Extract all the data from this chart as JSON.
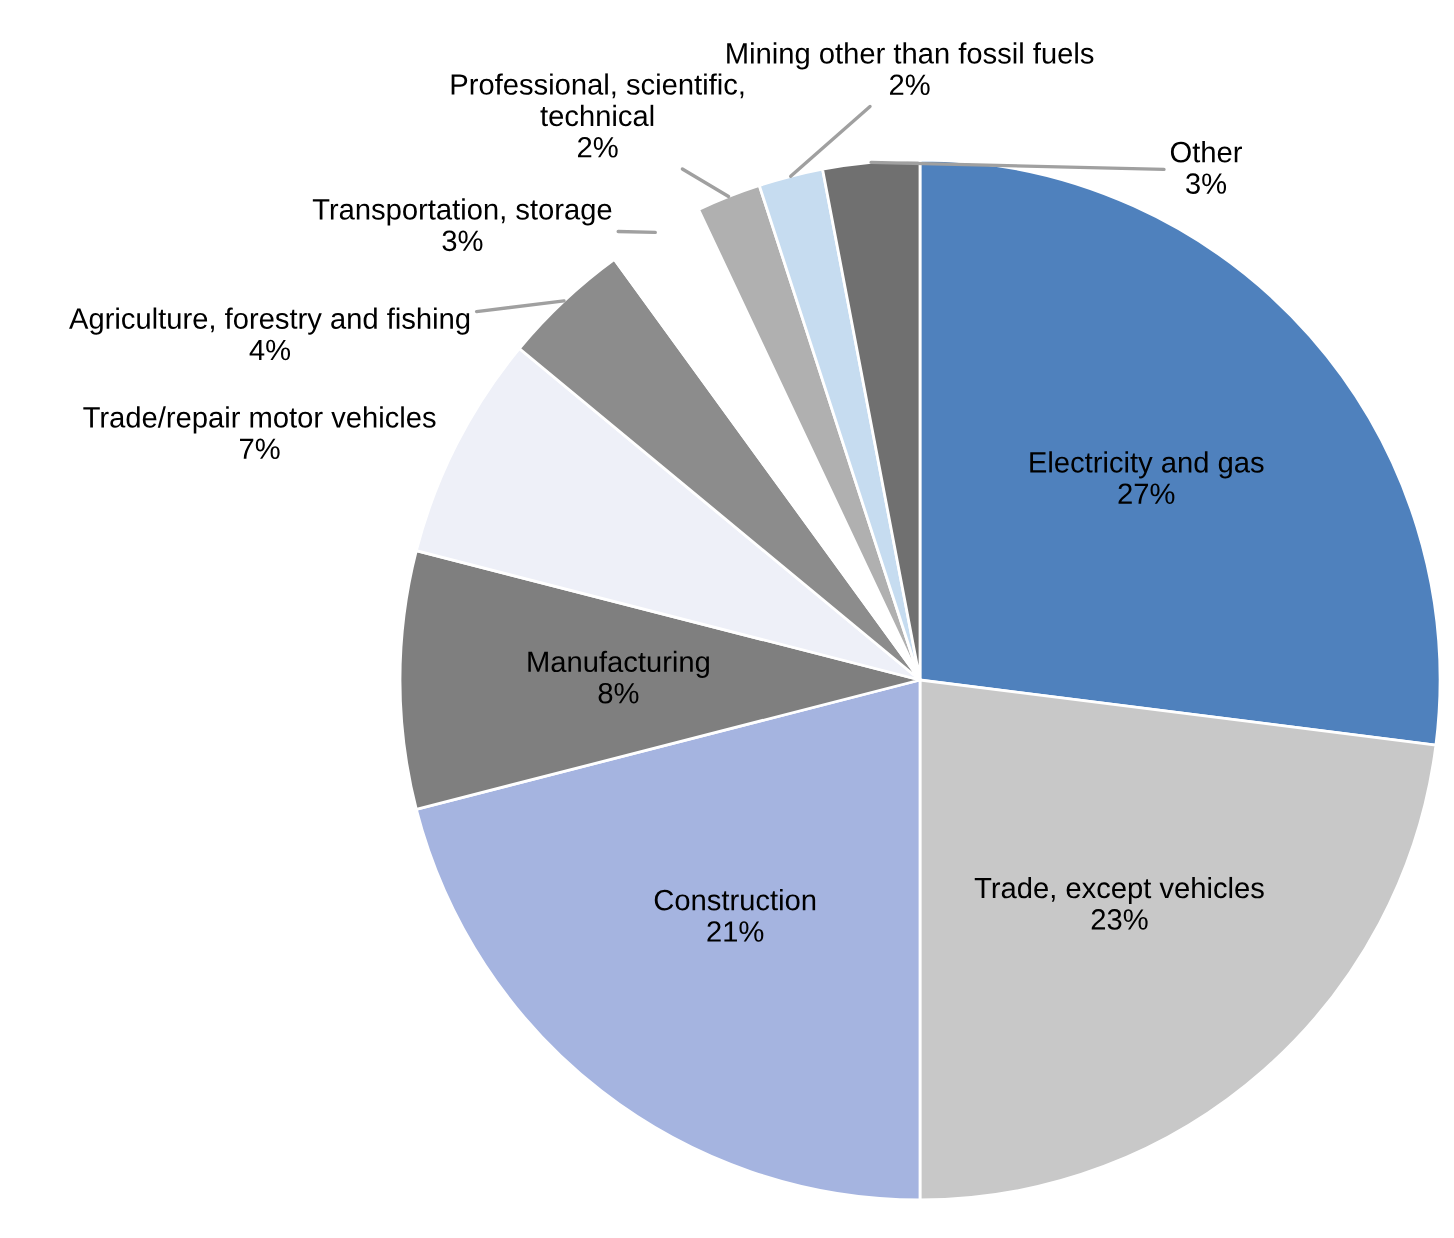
{
  "chart_data": {
    "type": "pie",
    "categories": [
      "Electricity and gas",
      "Trade, except vehicles",
      "Construction",
      "Manufacturing",
      "Trade/repair motor vehicles",
      "Agriculture, forestry and fishing",
      "Transportation, storage",
      "Professional, scientific,\ntechnical",
      "Mining other than fossil fuels",
      "Other"
    ],
    "values": [
      27,
      23,
      21,
      8,
      7,
      4,
      3,
      2,
      2,
      3
    ],
    "value_labels": [
      "27%",
      "23%",
      "21%",
      "8%",
      "7%",
      "4%",
      "3%",
      "2%",
      "2%",
      "3%"
    ],
    "colors": [
      "#4f81bd",
      "#c8c8c8",
      "#a5b4e0",
      "#7f7f7f",
      "#eef0f8",
      "#8c8c8c",
      "#ffffff",
      "#b0b0b0",
      "#c6dcf0",
      "#707070"
    ],
    "legend": false
  }
}
